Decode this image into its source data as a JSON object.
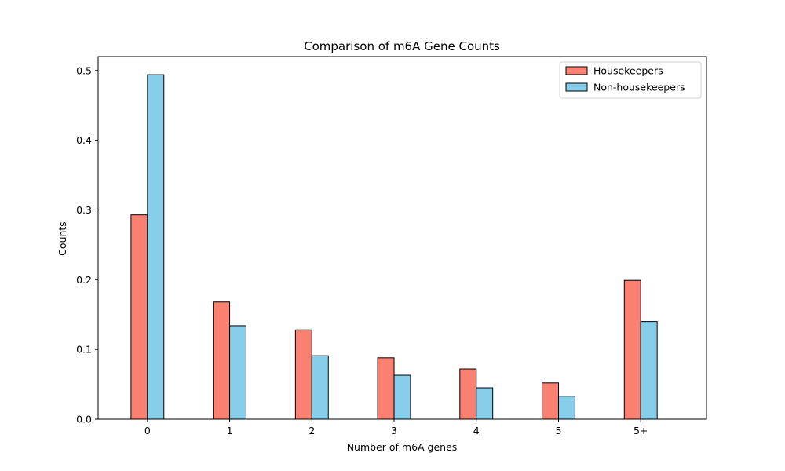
{
  "chart_data": {
    "type": "bar",
    "title": "Comparison of m6A Gene Counts",
    "xlabel": "Number of m6A genes",
    "ylabel": "Counts",
    "categories": [
      "0",
      "1",
      "2",
      "3",
      "4",
      "5",
      "5+"
    ],
    "series": [
      {
        "name": "Housekeepers",
        "color": "#fa8072",
        "values": [
          0.293,
          0.168,
          0.128,
          0.088,
          0.072,
          0.052,
          0.199
        ]
      },
      {
        "name": "Non-housekeepers",
        "color": "#87ceeb",
        "values": [
          0.494,
          0.134,
          0.091,
          0.063,
          0.045,
          0.033,
          0.14
        ]
      }
    ],
    "ylim": [
      0,
      0.52
    ],
    "yticks": [
      "0.0",
      "0.1",
      "0.2",
      "0.3",
      "0.4",
      "0.5"
    ],
    "grid": false,
    "legend_position": "top-right"
  }
}
